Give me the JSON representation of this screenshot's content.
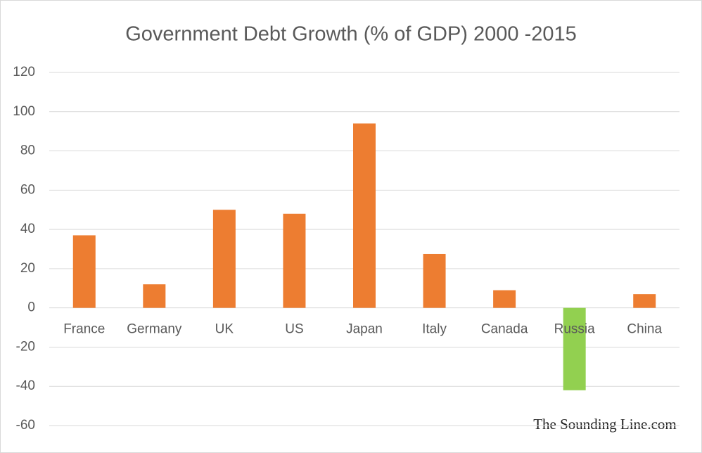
{
  "chart_data": {
    "type": "bar",
    "title": "Government Debt Growth (% of GDP) 2000 -2015",
    "categories": [
      "France",
      "Germany",
      "UK",
      "US",
      "Japan",
      "Italy",
      "Canada",
      "Russia",
      "China"
    ],
    "values": [
      37,
      12,
      50,
      48,
      94,
      27.5,
      9,
      -42,
      7
    ],
    "colors": [
      "#ed7d31",
      "#ed7d31",
      "#ed7d31",
      "#ed7d31",
      "#ed7d31",
      "#ed7d31",
      "#ed7d31",
      "#92d050",
      "#ed7d31"
    ],
    "ylim": [
      -60,
      120
    ],
    "yticks": [
      -60,
      -40,
      -20,
      0,
      20,
      40,
      60,
      80,
      100,
      120
    ],
    "grid": true,
    "annotation": "The Sounding Line.com"
  }
}
